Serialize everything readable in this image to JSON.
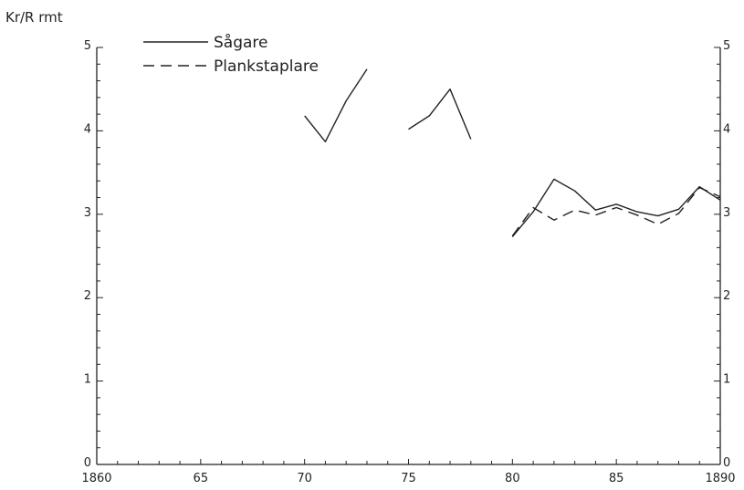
{
  "chart_data": {
    "type": "line",
    "title": "",
    "ylabel": "Kr/R rmt",
    "xlabel": "",
    "xlim": [
      1860,
      1890
    ],
    "ylim": [
      0,
      5
    ],
    "xticks": [
      1860,
      1865,
      1870,
      1875,
      1880,
      1885,
      1890
    ],
    "xtick_labels": [
      "1860",
      "65",
      "70",
      "75",
      "80",
      "85",
      "1890"
    ],
    "yticks": [
      0,
      1,
      2,
      3,
      4,
      5
    ],
    "ytick_labels": [
      "0",
      "1",
      "2",
      "3",
      "4",
      "5"
    ],
    "grid": false,
    "legend_position": "top-left",
    "series": [
      {
        "name": "Sågare",
        "style": "solid",
        "segments": [
          [
            [
              1870,
              4.18
            ],
            [
              1871,
              3.87
            ],
            [
              1872,
              4.36
            ],
            [
              1873,
              4.74
            ]
          ],
          [
            [
              1875,
              4.02
            ],
            [
              1876,
              4.18
            ],
            [
              1877,
              4.5
            ],
            [
              1878,
              3.9
            ]
          ],
          [
            [
              1880,
              2.73
            ],
            [
              1881,
              3.03
            ],
            [
              1882,
              3.42
            ],
            [
              1883,
              3.28
            ],
            [
              1884,
              3.05
            ],
            [
              1885,
              3.12
            ],
            [
              1886,
              3.03
            ],
            [
              1887,
              2.98
            ],
            [
              1888,
              3.06
            ],
            [
              1889,
              3.33
            ],
            [
              1890,
              3.17
            ]
          ]
        ]
      },
      {
        "name": "Plankstaplare",
        "style": "dashed",
        "segments": [
          [
            [
              1880,
              2.74
            ],
            [
              1881,
              3.08
            ],
            [
              1882,
              2.93
            ],
            [
              1883,
              3.05
            ],
            [
              1884,
              2.99
            ],
            [
              1885,
              3.08
            ],
            [
              1886,
              2.99
            ],
            [
              1887,
              2.88
            ],
            [
              1888,
              3.01
            ],
            [
              1889,
              3.32
            ],
            [
              1890,
              3.21
            ]
          ]
        ]
      }
    ]
  }
}
